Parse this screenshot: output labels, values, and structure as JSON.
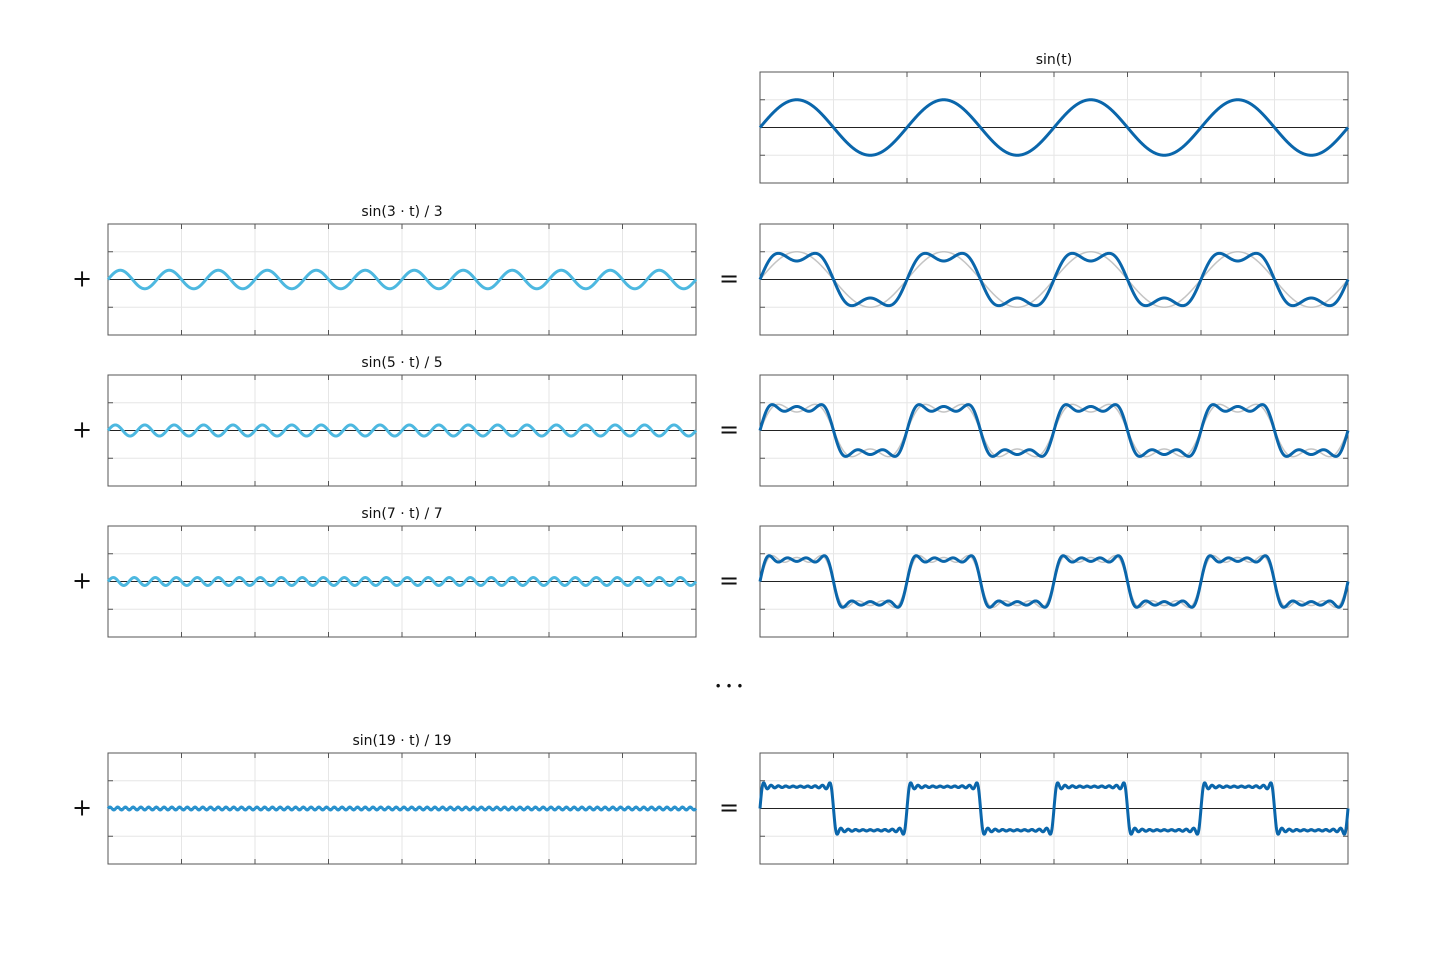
{
  "panels": [
    {
      "title": "sin(t)"
    },
    {
      "title": "sin(3 · t) / 3"
    },
    {
      "title": "sin(5 · t) / 5"
    },
    {
      "title": "sin(7 · t) / 7"
    },
    {
      "title": "sin(19 · t) / 19"
    }
  ],
  "operators": {
    "plus": "+",
    "equals": "=",
    "ellipsis": "• • •"
  }
}
